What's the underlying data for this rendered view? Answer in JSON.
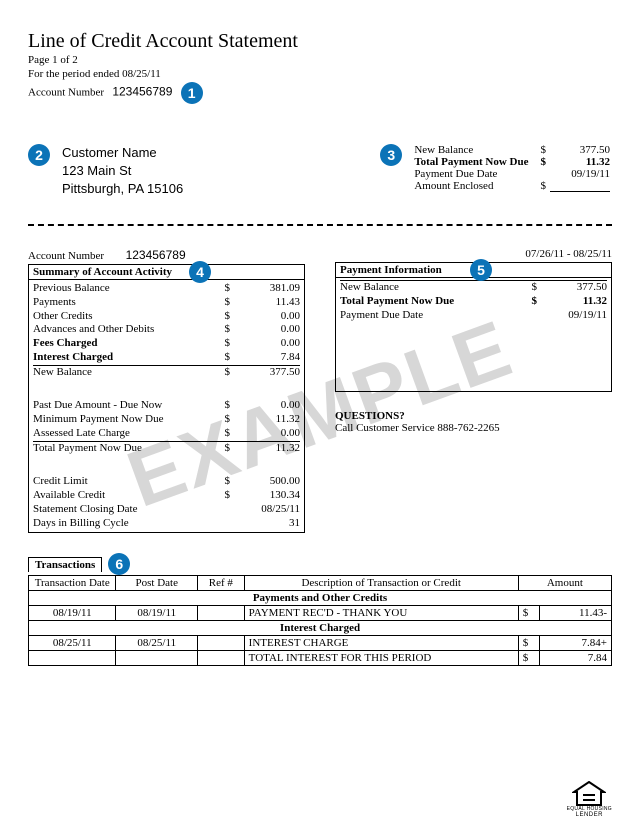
{
  "watermark_text": "EXAMPLE",
  "badge_color": "#0b73b7",
  "header": {
    "title": "Line of Credit Account Statement",
    "page_line": "Page 1 of 2",
    "period_line": "For the period ended 08/25/11",
    "acct_label": "Account Number",
    "acct_number": "123456789"
  },
  "badges": {
    "b1": "1",
    "b2": "2",
    "b3": "3",
    "b4": "4",
    "b5": "5",
    "b6": "6"
  },
  "customer": {
    "name": "Customer Name",
    "street": "123 Main St",
    "city_line": "Pittsburgh, PA 15106"
  },
  "balance_box": {
    "rows": [
      {
        "label": "New Balance",
        "cur": "$",
        "val": "377.50",
        "bold": false
      },
      {
        "label": "Total Payment Now Due",
        "cur": "$",
        "val": "11.32",
        "bold": true
      },
      {
        "label": "Payment Due Date",
        "cur": "",
        "val": "09/19/11",
        "bold": false
      }
    ],
    "enclosed_label": "Amount Enclosed",
    "enclosed_cur": "$"
  },
  "lower_header": {
    "acct_label": "Account Number",
    "acct_number": "123456789",
    "period_range": "07/26/11 - 08/25/11"
  },
  "summary": {
    "title": "Summary of Account Activity",
    "groups": [
      [
        {
          "label": "Previous Balance",
          "cur": "$",
          "val": "381.09"
        },
        {
          "label": "Payments",
          "cur": "$",
          "val": "11.43"
        },
        {
          "label": "Other Credits",
          "cur": "$",
          "val": "0.00"
        },
        {
          "label": "Advances and Other Debits",
          "cur": "$",
          "val": "0.00"
        },
        {
          "label": "Fees Charged",
          "cur": "$",
          "val": "0.00",
          "bold": true
        },
        {
          "label": "Interest Charged",
          "cur": "$",
          "val": "7.84",
          "bold": true
        }
      ],
      [
        {
          "label": "New Balance",
          "cur": "$",
          "val": "377.50",
          "lineabove": true
        }
      ],
      [
        {
          "label": "Past Due Amount - Due Now",
          "cur": "$",
          "val": "0.00"
        },
        {
          "label": "Minimum Payment Now Due",
          "cur": "$",
          "val": "11.32"
        },
        {
          "label": "Assessed Late Charge",
          "cur": "$",
          "val": "0.00"
        }
      ],
      [
        {
          "label": "Total Payment Now Due",
          "cur": "$",
          "val": "11.32",
          "lineabove": true
        }
      ],
      [
        {
          "label": "Credit Limit",
          "cur": "$",
          "val": "500.00"
        },
        {
          "label": "Available Credit",
          "cur": "$",
          "val": "130.34"
        },
        {
          "label": "Statement Closing Date",
          "cur": "",
          "val": "08/25/11"
        },
        {
          "label": "Days in Billing Cycle",
          "cur": "",
          "val": "31"
        }
      ]
    ]
  },
  "payment_info": {
    "title": "Payment Information",
    "rows": [
      {
        "label": "New Balance",
        "cur": "$",
        "val": "377.50",
        "lineabove": true
      },
      {
        "label": "Total Payment Now Due",
        "cur": "$",
        "val": "11.32",
        "bold": true
      },
      {
        "label": "Payment Due Date",
        "cur": "",
        "val": "09/19/11"
      }
    ],
    "questions_head": "QUESTIONS?",
    "questions_line": "Call Customer Service  888-762-2265"
  },
  "transactions": {
    "title": "Transactions",
    "columns": [
      "Transaction Date",
      "Post Date",
      "Ref #",
      "Description of Transaction or Credit",
      "Amount"
    ],
    "sections": [
      {
        "heading": "Payments and Other Credits",
        "rows": [
          {
            "tdate": "08/19/11",
            "pdate": "08/19/11",
            "ref": "",
            "desc": "PAYMENT REC'D - THANK YOU",
            "cur": "$",
            "amt": "11.43-"
          }
        ]
      },
      {
        "heading": "Interest Charged",
        "thick": true,
        "rows": [
          {
            "tdate": "08/25/11",
            "pdate": "08/25/11",
            "ref": "",
            "desc": "INTEREST CHARGE",
            "cur": "$",
            "amt": "7.84+"
          },
          {
            "tdate": "",
            "pdate": "",
            "ref": "",
            "desc": "TOTAL INTEREST  FOR THIS PERIOD",
            "cur": "$",
            "amt": "7.84",
            "bold_desc": true
          }
        ]
      }
    ]
  },
  "footer": {
    "line1": "EQUAL HOUSING",
    "line2": "LENDER"
  }
}
